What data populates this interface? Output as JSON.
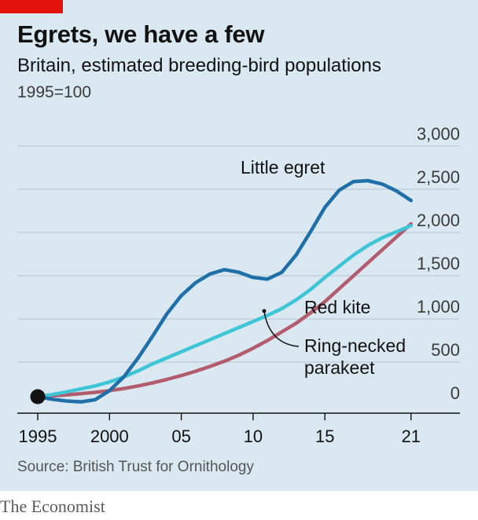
{
  "brand_tag_color": "#e3120b",
  "title": "Egrets, we have a few",
  "subtitle": "Britain, estimated breeding-bird populations",
  "index_note": "1995=100",
  "source": "Source: British Trust for Ornithology",
  "publisher": "The Economist",
  "chart_data": {
    "type": "line",
    "x_ticks": [
      {
        "value": 1995,
        "label": "1995"
      },
      {
        "value": 2000,
        "label": "2000"
      },
      {
        "value": 2005,
        "label": "05"
      },
      {
        "value": 2010,
        "label": "10"
      },
      {
        "value": 2015,
        "label": "15"
      },
      {
        "value": 2021,
        "label": "21"
      }
    ],
    "y_ticks": [
      {
        "value": 0,
        "label": "0"
      },
      {
        "value": 500,
        "label": "500"
      },
      {
        "value": 1000,
        "label": "1,000"
      },
      {
        "value": 1500,
        "label": "1,500"
      },
      {
        "value": 2000,
        "label": "2,000"
      },
      {
        "value": 2500,
        "label": "2,500"
      },
      {
        "value": 3000,
        "label": "3,000"
      }
    ],
    "xlim": [
      1995,
      2024
    ],
    "ylim": [
      0,
      3000
    ],
    "grid": true,
    "series": [
      {
        "name": "Little egret",
        "color": "#1f6fa8",
        "points": [
          [
            1995,
            100
          ],
          [
            1996,
            70
          ],
          [
            1997,
            50
          ],
          [
            1998,
            40
          ],
          [
            1999,
            65
          ],
          [
            2000,
            170
          ],
          [
            2001,
            330
          ],
          [
            2002,
            550
          ],
          [
            2003,
            800
          ],
          [
            2004,
            1060
          ],
          [
            2005,
            1270
          ],
          [
            2006,
            1420
          ],
          [
            2007,
            1520
          ],
          [
            2008,
            1570
          ],
          [
            2009,
            1540
          ],
          [
            2010,
            1480
          ],
          [
            2011,
            1460
          ],
          [
            2012,
            1540
          ],
          [
            2013,
            1740
          ],
          [
            2014,
            2010
          ],
          [
            2015,
            2290
          ],
          [
            2016,
            2490
          ],
          [
            2017,
            2590
          ],
          [
            2018,
            2600
          ],
          [
            2019,
            2560
          ],
          [
            2020,
            2480
          ],
          [
            2021,
            2370
          ]
        ]
      },
      {
        "name": "Red kite",
        "color": "#b25c6e",
        "points": [
          [
            1995,
            100
          ],
          [
            1996,
            110
          ],
          [
            1997,
            120
          ],
          [
            1998,
            135
          ],
          [
            1999,
            150
          ],
          [
            2000,
            170
          ],
          [
            2001,
            195
          ],
          [
            2002,
            225
          ],
          [
            2003,
            260
          ],
          [
            2004,
            300
          ],
          [
            2005,
            345
          ],
          [
            2006,
            395
          ],
          [
            2007,
            450
          ],
          [
            2008,
            510
          ],
          [
            2009,
            580
          ],
          [
            2010,
            660
          ],
          [
            2011,
            750
          ],
          [
            2012,
            850
          ],
          [
            2013,
            950
          ],
          [
            2014,
            1070
          ],
          [
            2015,
            1200
          ],
          [
            2016,
            1350
          ],
          [
            2017,
            1500
          ],
          [
            2018,
            1650
          ],
          [
            2019,
            1800
          ],
          [
            2020,
            1950
          ],
          [
            2021,
            2100
          ]
        ]
      },
      {
        "name": "Ring-necked parakeet",
        "color": "#3ec5d6",
        "points": [
          [
            1995,
            100
          ],
          [
            1996,
            125
          ],
          [
            1997,
            155
          ],
          [
            1998,
            190
          ],
          [
            1999,
            225
          ],
          [
            2000,
            270
          ],
          [
            2001,
            330
          ],
          [
            2002,
            400
          ],
          [
            2003,
            480
          ],
          [
            2004,
            550
          ],
          [
            2005,
            620
          ],
          [
            2006,
            690
          ],
          [
            2007,
            760
          ],
          [
            2008,
            830
          ],
          [
            2009,
            900
          ],
          [
            2010,
            970
          ],
          [
            2011,
            1040
          ],
          [
            2012,
            1120
          ],
          [
            2013,
            1220
          ],
          [
            2014,
            1340
          ],
          [
            2015,
            1480
          ],
          [
            2016,
            1610
          ],
          [
            2017,
            1740
          ],
          [
            2018,
            1850
          ],
          [
            2019,
            1940
          ],
          [
            2020,
            2010
          ],
          [
            2021,
            2080
          ]
        ]
      }
    ],
    "labels": {
      "little_egret": "Little egret",
      "red_kite": "Red kite",
      "parakeet_line1": "Ring-necked",
      "parakeet_line2": "parakeet"
    },
    "base_marker": {
      "x": 1995,
      "y": 100,
      "color": "#121212"
    }
  }
}
